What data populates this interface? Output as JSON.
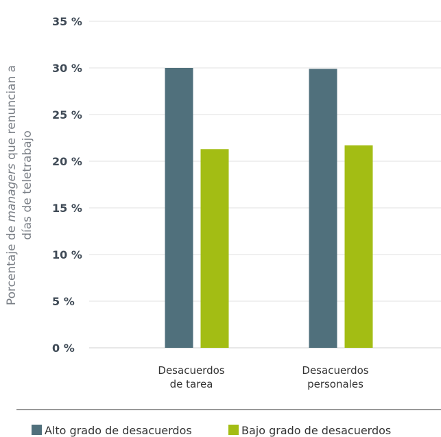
{
  "chart_data": {
    "type": "bar",
    "categories": [
      [
        "Desacuerdos",
        "de tarea"
      ],
      [
        "Desacuerdos",
        "personales"
      ]
    ],
    "series": [
      {
        "name": "Alto grado de desacuerdos",
        "values": [
          30.0,
          29.9
        ],
        "color": "#50707c"
      },
      {
        "name": "Bajo grado de desacuerdos",
        "values": [
          21.3,
          21.7
        ],
        "color": "#a3bd14"
      }
    ],
    "ylabel": {
      "line1_prefix": "Porcentaje de ",
      "line1_italic": "managers",
      "line1_suffix": " que renuncian a",
      "line2": "días de teletrabajo"
    },
    "ylim": [
      0,
      35
    ],
    "yticks": [
      0,
      5,
      10,
      15,
      20,
      25,
      30,
      35
    ],
    "ytick_labels": [
      "0 %",
      "5 %",
      "10 %",
      "15 %",
      "20 %",
      "25 %",
      "30 %",
      "35 %"
    ],
    "grid": true,
    "legend": "bottom"
  }
}
